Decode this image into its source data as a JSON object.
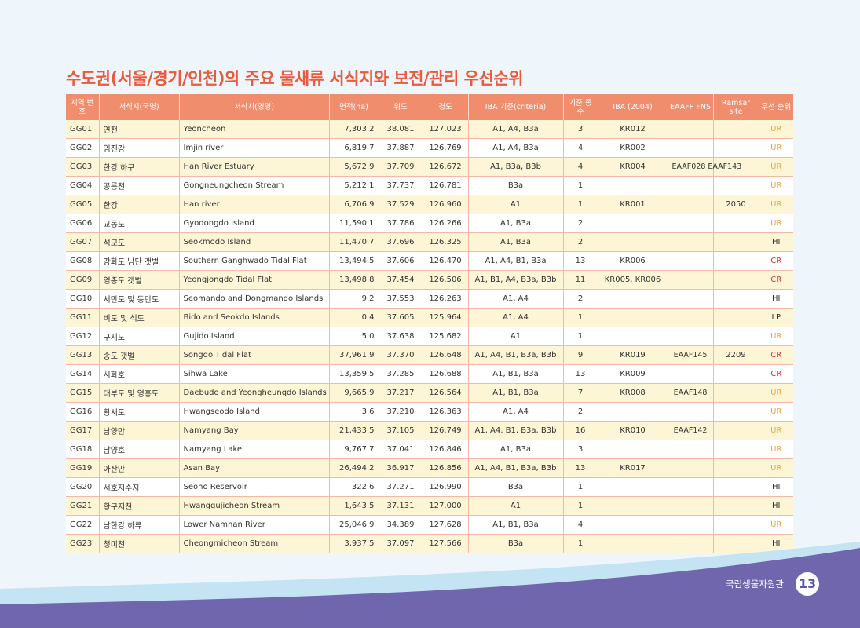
{
  "title": "수도권(서울/경기/인천)의 주요 물새류 서식지와 보전/관리 우선순위",
  "colors": {
    "accent": "#ea5a3c",
    "header_bg": "#f08d6d",
    "row_alt": "#fdf6d6",
    "footer_band": "#6f66ad",
    "ur": "#f0a23a",
    "cr": "#d9362a"
  },
  "columns": [
    "지역 번호",
    "서식지(국명)",
    "서식지(영명)",
    "면적(ha)",
    "위도",
    "경도",
    "IBA 기준(criteria)",
    "기준 종 수",
    "IBA (2004)",
    "EAAFP FNS",
    "Ramsar site",
    "우선 순위"
  ],
  "rows": [
    {
      "id": "GG01",
      "kr": "연천",
      "en": "Yeoncheon",
      "area": "7,303.2",
      "lat": "38.081",
      "lon": "127.023",
      "iba": "A1, A4, B3a",
      "species": "3",
      "iba2004": "KR012",
      "eaafp": "",
      "ramsar": "",
      "priority": "UR"
    },
    {
      "id": "GG02",
      "kr": "임진강",
      "en": "Imjin river",
      "area": "6,819.7",
      "lat": "37.887",
      "lon": "126.769",
      "iba": "A1, A4, B3a",
      "species": "4",
      "iba2004": "KR002",
      "eaafp": "",
      "ramsar": "",
      "priority": "UR"
    },
    {
      "id": "GG03",
      "kr": "한강 하구",
      "en": "Han River Estuary",
      "area": "5,672.9",
      "lat": "37.709",
      "lon": "126.672",
      "iba": "A1, B3a, B3b",
      "species": "4",
      "iba2004": "KR004",
      "eaafp": "EAAF028 EAAF143",
      "ramsar": "",
      "priority": "UR"
    },
    {
      "id": "GG04",
      "kr": "공릉천",
      "en": "Gongneungcheon Stream",
      "area": "5,212.1",
      "lat": "37.737",
      "lon": "126.781",
      "iba": "B3a",
      "species": "1",
      "iba2004": "",
      "eaafp": "",
      "ramsar": "",
      "priority": "UR"
    },
    {
      "id": "GG05",
      "kr": "한강",
      "en": "Han river",
      "area": "6,706.9",
      "lat": "37.529",
      "lon": "126.960",
      "iba": "A1",
      "species": "1",
      "iba2004": "KR001",
      "eaafp": "",
      "ramsar": "2050",
      "priority": "UR"
    },
    {
      "id": "GG06",
      "kr": "교동도",
      "en": "Gyodongdo Island",
      "area": "11,590.1",
      "lat": "37.786",
      "lon": "126.266",
      "iba": "A1, B3a",
      "species": "2",
      "iba2004": "",
      "eaafp": "",
      "ramsar": "",
      "priority": "UR"
    },
    {
      "id": "GG07",
      "kr": "석모도",
      "en": "Seokmodo Island",
      "area": "11,470.7",
      "lat": "37.696",
      "lon": "126.325",
      "iba": "A1, B3a",
      "species": "2",
      "iba2004": "",
      "eaafp": "",
      "ramsar": "",
      "priority": "HI"
    },
    {
      "id": "GG08",
      "kr": "강화도 남단 갯벌",
      "en": "Southern Ganghwado Tidal Flat",
      "area": "13,494.5",
      "lat": "37.606",
      "lon": "126.470",
      "iba": "A1, A4, B1, B3a",
      "species": "13",
      "iba2004": "KR006",
      "eaafp": "",
      "ramsar": "",
      "priority": "CR"
    },
    {
      "id": "GG09",
      "kr": "영종도 갯벌",
      "en": "Yeongjongdo Tidal Flat",
      "area": "13,498.8",
      "lat": "37.454",
      "lon": "126.506",
      "iba": "A1, B1, A4, B3a, B3b",
      "species": "11",
      "iba2004": "KR005, KR006",
      "eaafp": "",
      "ramsar": "",
      "priority": "CR"
    },
    {
      "id": "GG10",
      "kr": "서만도 및 동만도",
      "en": "Seomando and Dongmando Islands",
      "area": "9.2",
      "lat": "37.553",
      "lon": "126.263",
      "iba": "A1, A4",
      "species": "2",
      "iba2004": "",
      "eaafp": "",
      "ramsar": "",
      "priority": "HI"
    },
    {
      "id": "GG11",
      "kr": "비도 및 석도",
      "en": "Bido and Seokdo Islands",
      "area": "0.4",
      "lat": "37.605",
      "lon": "125.964",
      "iba": "A1, A4",
      "species": "1",
      "iba2004": "",
      "eaafp": "",
      "ramsar": "",
      "priority": "LP"
    },
    {
      "id": "GG12",
      "kr": "구지도",
      "en": "Gujido Island",
      "area": "5.0",
      "lat": "37.638",
      "lon": "125.682",
      "iba": "A1",
      "species": "1",
      "iba2004": "",
      "eaafp": "",
      "ramsar": "",
      "priority": "UR"
    },
    {
      "id": "GG13",
      "kr": "송도 갯벌",
      "en": "Songdo Tidal Flat",
      "area": "37,961.9",
      "lat": "37.370",
      "lon": "126.648",
      "iba": "A1, A4, B1, B3a, B3b",
      "species": "9",
      "iba2004": "KR019",
      "eaafp": "EAAF145",
      "ramsar": "2209",
      "priority": "CR"
    },
    {
      "id": "GG14",
      "kr": "시화호",
      "en": "Sihwa Lake",
      "area": "13,359.5",
      "lat": "37.285",
      "lon": "126.688",
      "iba": "A1, B1, B3a",
      "species": "13",
      "iba2004": "KR009",
      "eaafp": "",
      "ramsar": "",
      "priority": "CR"
    },
    {
      "id": "GG15",
      "kr": "대부도 및 영흥도",
      "en": "Daebudo and Yeongheungdo Islands",
      "area": "9,665.9",
      "lat": "37.217",
      "lon": "126.564",
      "iba": "A1, B1, B3a",
      "species": "7",
      "iba2004": "KR008",
      "eaafp": "EAAF148",
      "ramsar": "",
      "priority": "UR"
    },
    {
      "id": "GG16",
      "kr": "황서도",
      "en": "Hwangseodo Island",
      "area": "3.6",
      "lat": "37.210",
      "lon": "126.363",
      "iba": "A1, A4",
      "species": "2",
      "iba2004": "",
      "eaafp": "",
      "ramsar": "",
      "priority": "UR"
    },
    {
      "id": "GG17",
      "kr": "남양만",
      "en": "Namyang Bay",
      "area": "21,433.5",
      "lat": "37.105",
      "lon": "126.749",
      "iba": "A1, A4, B1, B3a, B3b",
      "species": "16",
      "iba2004": "KR010",
      "eaafp": "EAAF142",
      "ramsar": "",
      "priority": "UR"
    },
    {
      "id": "GG18",
      "kr": "남양호",
      "en": "Namyang Lake",
      "area": "9,767.7",
      "lat": "37.041",
      "lon": "126.846",
      "iba": "A1, B3a",
      "species": "3",
      "iba2004": "",
      "eaafp": "",
      "ramsar": "",
      "priority": "UR"
    },
    {
      "id": "GG19",
      "kr": "아산만",
      "en": "Asan Bay",
      "area": "26,494.2",
      "lat": "36.917",
      "lon": "126.856",
      "iba": "A1, A4, B1, B3a, B3b",
      "species": "13",
      "iba2004": "KR017",
      "eaafp": "",
      "ramsar": "",
      "priority": "UR"
    },
    {
      "id": "GG20",
      "kr": "서호저수지",
      "en": "Seoho Reservoir",
      "area": "322.6",
      "lat": "37.271",
      "lon": "126.990",
      "iba": "B3a",
      "species": "1",
      "iba2004": "",
      "eaafp": "",
      "ramsar": "",
      "priority": "HI"
    },
    {
      "id": "GG21",
      "kr": "황구지천",
      "en": "Hwanggujicheon Stream",
      "area": "1,643.5",
      "lat": "37.131",
      "lon": "127.000",
      "iba": "A1",
      "species": "1",
      "iba2004": "",
      "eaafp": "",
      "ramsar": "",
      "priority": "HI"
    },
    {
      "id": "GG22",
      "kr": "남한강 하류",
      "en": "Lower Namhan River",
      "area": "25,046.9",
      "lat": "34.389",
      "lon": "127.628",
      "iba": "A1, B1, B3a",
      "species": "4",
      "iba2004": "",
      "eaafp": "",
      "ramsar": "",
      "priority": "UR"
    },
    {
      "id": "GG23",
      "kr": "청미천",
      "en": "Cheongmicheon Stream",
      "area": "3,937.5",
      "lat": "37.097",
      "lon": "127.566",
      "iba": "B3a",
      "species": "1",
      "iba2004": "",
      "eaafp": "",
      "ramsar": "",
      "priority": "HI"
    }
  ],
  "footer": {
    "org": "국립생물자원관",
    "page": "13"
  }
}
